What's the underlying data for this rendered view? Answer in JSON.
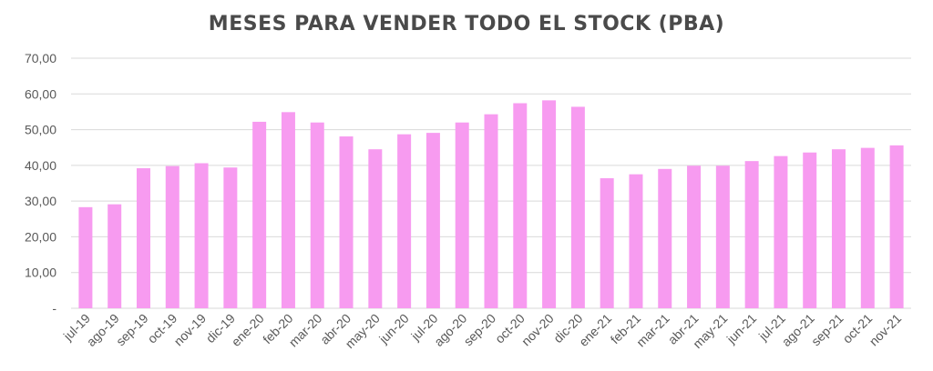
{
  "chart_data": {
    "type": "bar",
    "title": "MESES PARA VENDER TODO EL STOCK (PBA)",
    "xlabel": "",
    "ylabel": "",
    "ylim": [
      0,
      70
    ],
    "yticks": [
      0,
      10,
      20,
      30,
      40,
      50,
      60,
      70
    ],
    "ytick_labels": [
      "-",
      "10,00",
      "20,00",
      "30,00",
      "40,00",
      "50,00",
      "60,00",
      "70,00"
    ],
    "grid": true,
    "bar_color": "#f79bf0",
    "categories": [
      "jul-19",
      "ago-19",
      "sep-19",
      "oct-19",
      "nov-19",
      "dic-19",
      "ene-20",
      "feb-20",
      "mar-20",
      "abr-20",
      "may-20",
      "jun-20",
      "jul-20",
      "ago-20",
      "sep-20",
      "oct-20",
      "nov-20",
      "dic-20",
      "ene-21",
      "feb-21",
      "mar-21",
      "abr-21",
      "may-21",
      "jun-21",
      "jul-21",
      "ago-21",
      "sep-21",
      "oct-21",
      "nov-21"
    ],
    "values": [
      28.3,
      29.1,
      39.2,
      39.8,
      40.6,
      39.4,
      52.2,
      54.9,
      52.0,
      48.1,
      44.5,
      48.7,
      49.1,
      52.0,
      54.3,
      57.4,
      58.2,
      56.4,
      36.4,
      37.5,
      39.0,
      39.9,
      39.9,
      41.2,
      42.6,
      43.6,
      44.5,
      44.9,
      45.6
    ]
  }
}
